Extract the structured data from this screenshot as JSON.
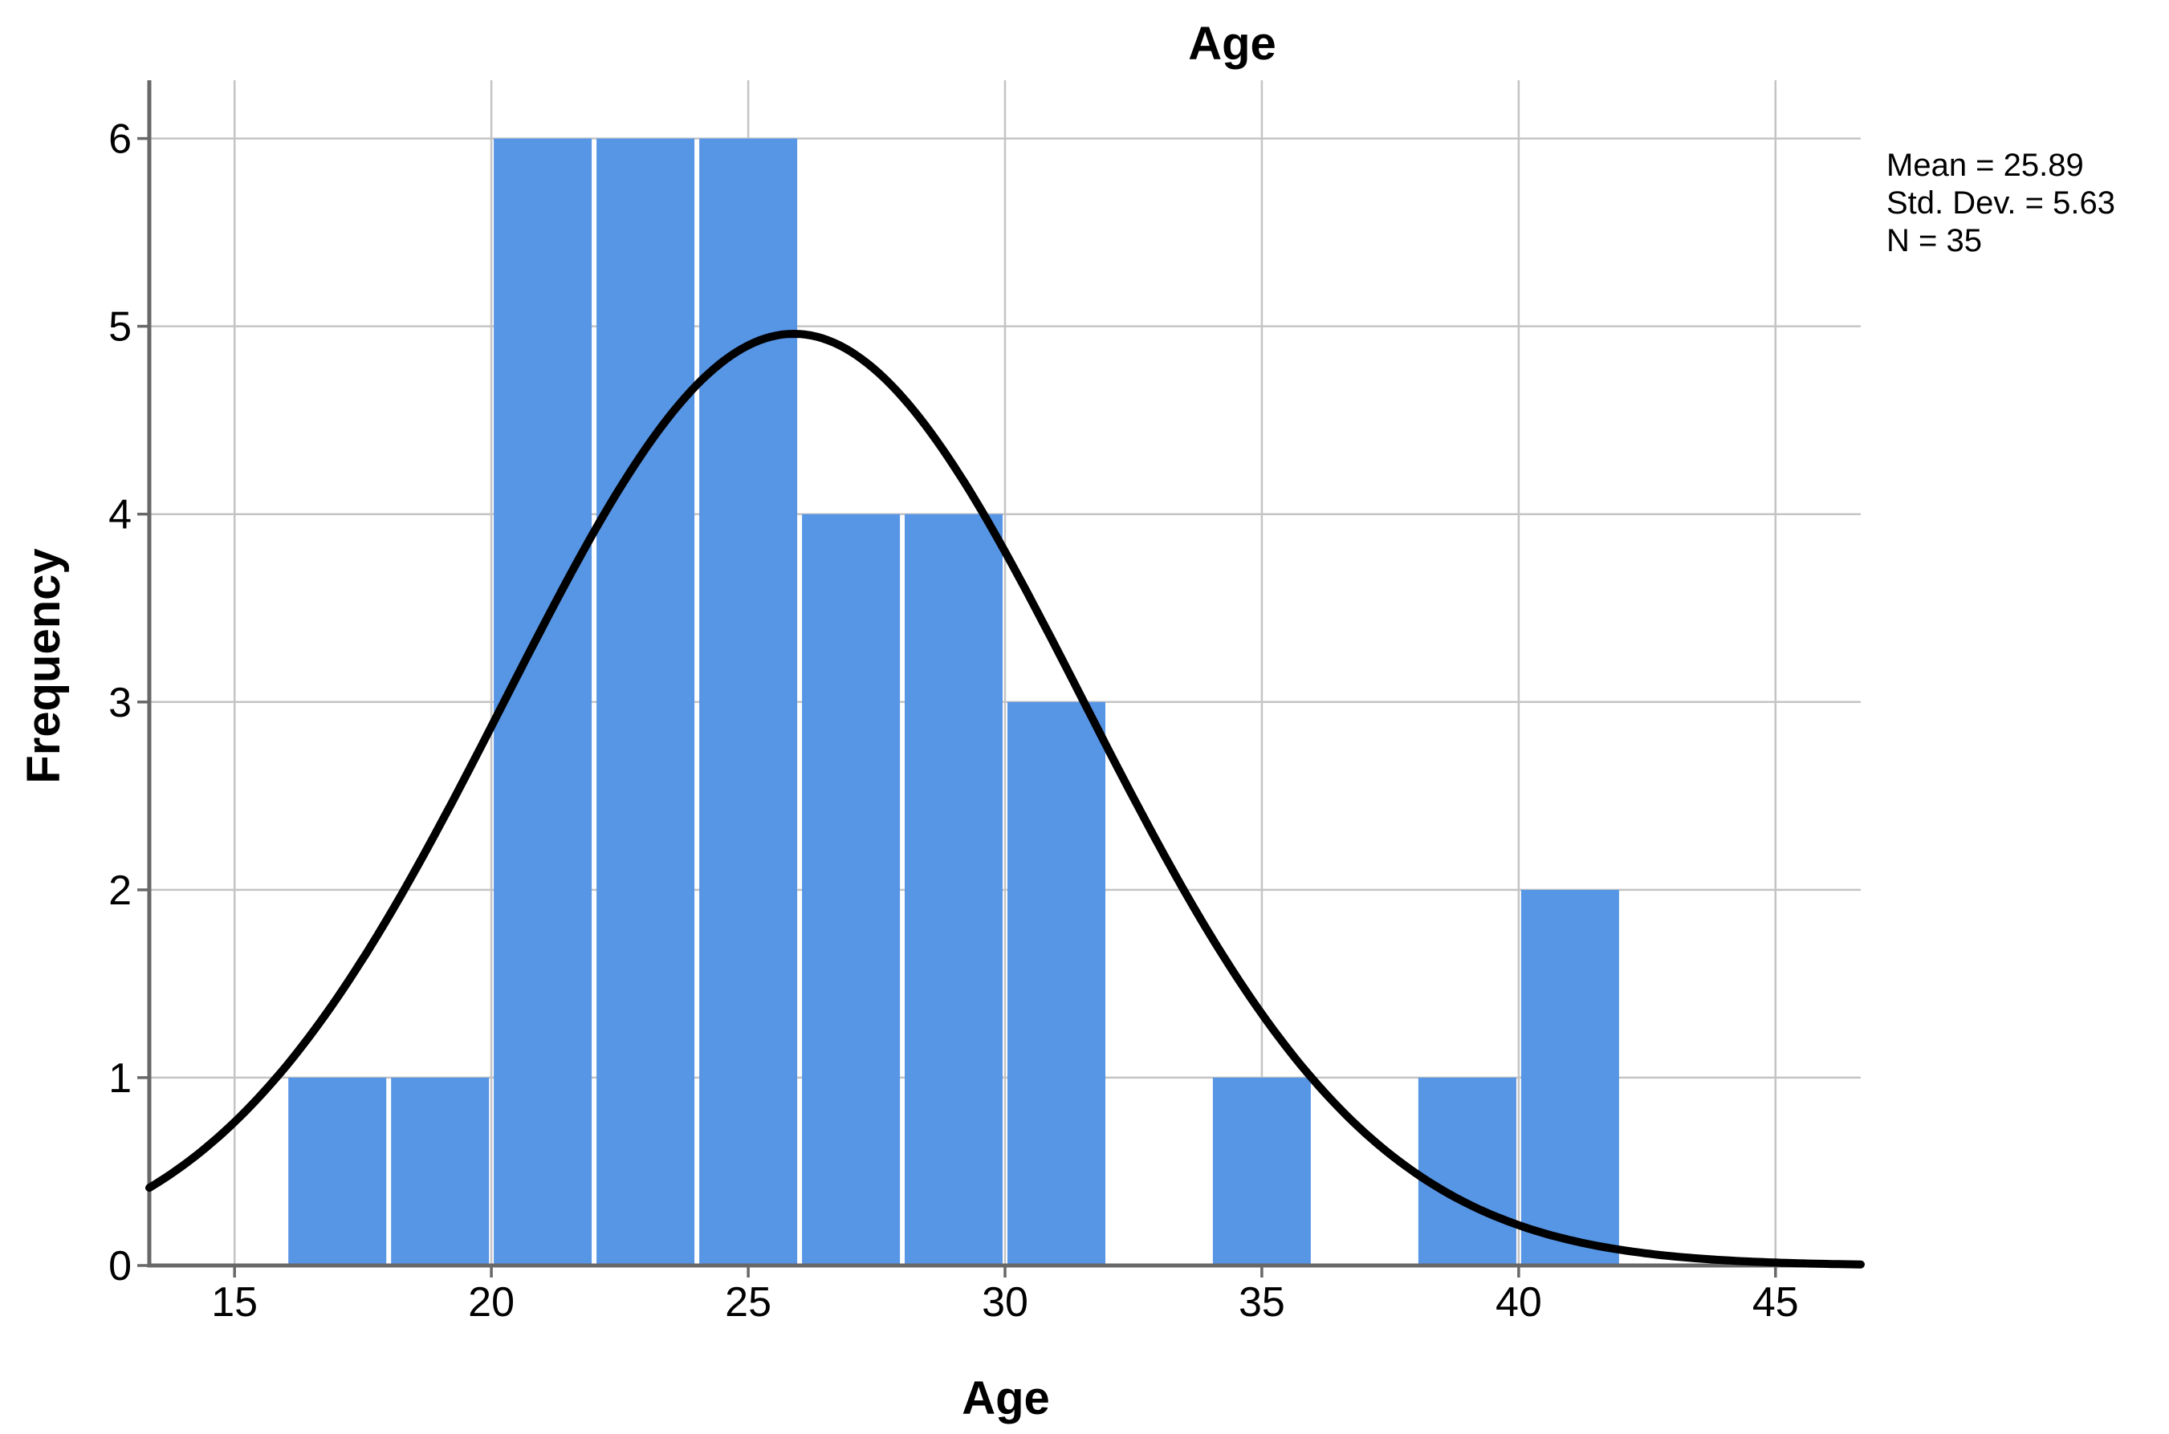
{
  "chart_data": {
    "type": "bar",
    "subtype": "histogram_with_normal_curve",
    "title": "Age",
    "xlabel": "Age",
    "ylabel": "Frequency",
    "bin_width": 2,
    "bin_edges": [
      16,
      18,
      20,
      22,
      24,
      26,
      28,
      30,
      32,
      34,
      36,
      38,
      40,
      42
    ],
    "frequencies": [
      1,
      1,
      6,
      6,
      6,
      4,
      4,
      3,
      0,
      1,
      0,
      1,
      2
    ],
    "x_ticks": [
      15,
      20,
      25,
      30,
      35,
      40,
      45
    ],
    "y_ticks": [
      0,
      1,
      2,
      3,
      4,
      5,
      6
    ],
    "xlim": [
      13.34,
      46.66
    ],
    "ylim": [
      0,
      6.31
    ],
    "grid": true,
    "normal_curve": {
      "mean": 25.89,
      "std_dev": 5.63,
      "n": 35
    },
    "annotations": [
      "Mean = 25.89",
      "Std. Dev. = 5.63",
      "N = 35"
    ],
    "legend_position": "none",
    "colors": {
      "bar_fill": "#5795E5",
      "bar_separator": "#FFFFFF",
      "gridline": "#C4C4C4",
      "axis": "#686868",
      "tick": "#686868",
      "curve": "#000000",
      "text": "#000000",
      "background": "#FFFFFF"
    }
  }
}
